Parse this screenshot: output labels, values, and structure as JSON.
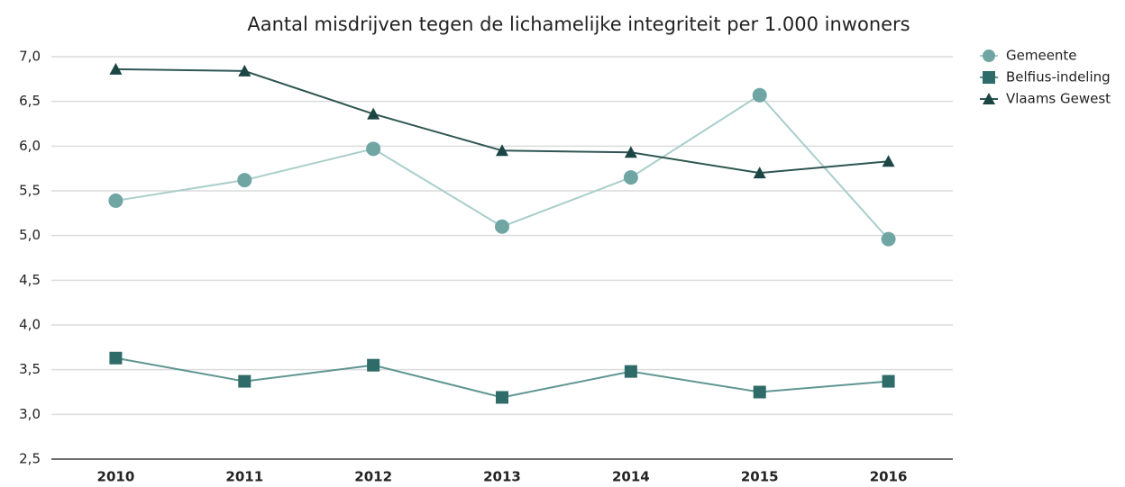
{
  "chart_data": {
    "type": "line",
    "title": "Aantal misdrijven tegen de lichamelijke integriteit per 1.000 inwoners",
    "categories": [
      "2010",
      "2011",
      "2012",
      "2013",
      "2014",
      "2015",
      "2016"
    ],
    "series": [
      {
        "name": "Gemeente",
        "color": "#6fa6a4",
        "line_color": "#a9cecb",
        "marker": "circle",
        "values": [
          5.39,
          5.62,
          5.97,
          5.1,
          5.65,
          6.57,
          4.96
        ]
      },
      {
        "name": "Belfius-indeling",
        "color": "#2f6b68",
        "line_color": "#5f9693",
        "marker": "square",
        "values": [
          3.63,
          3.37,
          3.55,
          3.19,
          3.48,
          3.25,
          3.37
        ]
      },
      {
        "name": "Vlaams Gewest",
        "color": "#1c4644",
        "line_color": "#2f5653",
        "marker": "triangle",
        "values": [
          6.86,
          6.84,
          6.36,
          5.95,
          5.93,
          5.7,
          5.83
        ]
      }
    ],
    "ylim": [
      2.5,
      7
    ],
    "yticks": [
      {
        "value": 2.5,
        "label": "2,5"
      },
      {
        "value": 3,
        "label": "3,0"
      },
      {
        "value": 3.5,
        "label": "3,5"
      },
      {
        "value": 4,
        "label": "4,0"
      },
      {
        "value": 4.5,
        "label": "4,5"
      },
      {
        "value": 5,
        "label": "5,0"
      },
      {
        "value": 5.5,
        "label": "5,5"
      },
      {
        "value": 6,
        "label": "6,0"
      },
      {
        "value": 6.5,
        "label": "6,5"
      },
      {
        "value": 7,
        "label": "7,0"
      }
    ],
    "grid": true,
    "legend": "right"
  }
}
